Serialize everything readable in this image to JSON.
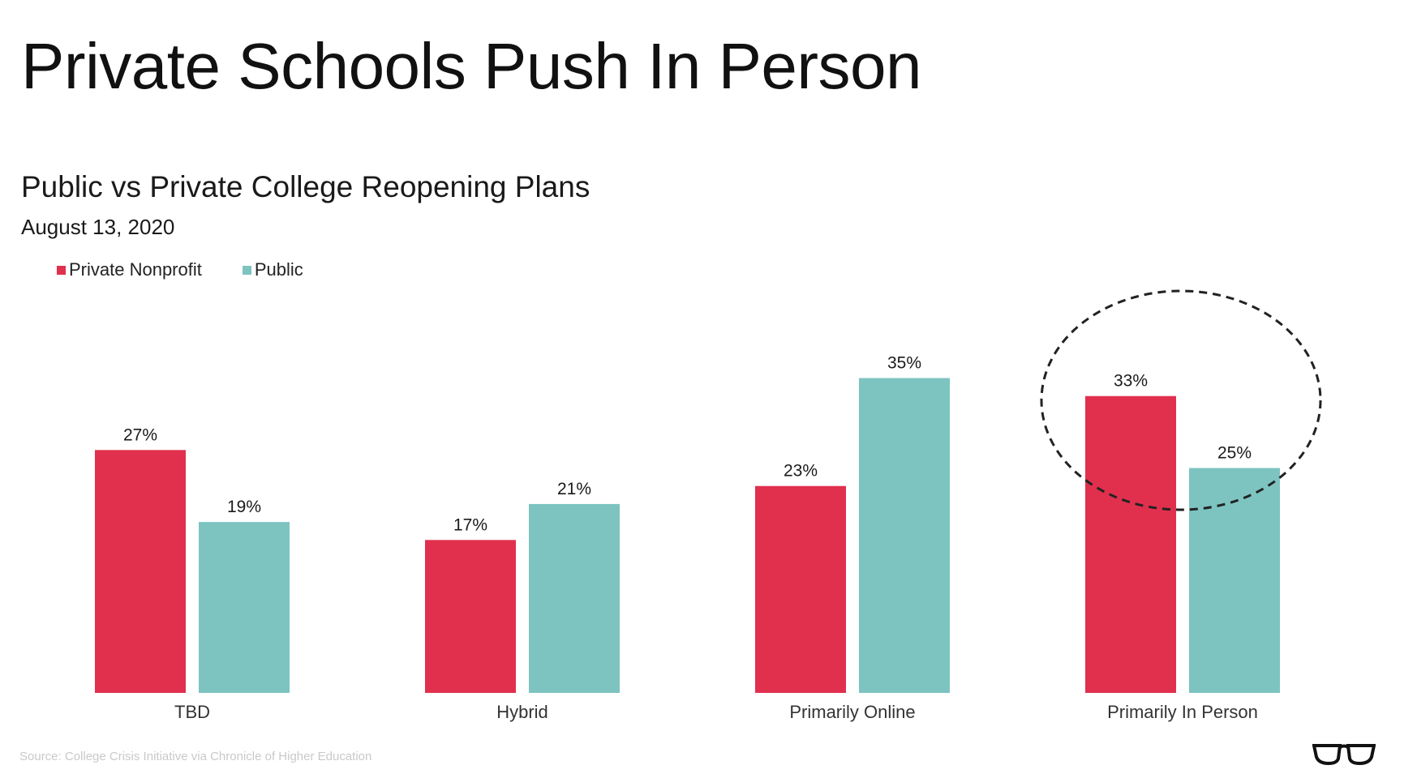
{
  "slide": {
    "title": "Private Schools Push In Person",
    "source": "Source: College Crisis Initiative via Chronicle of Higher Education"
  },
  "chart_data": {
    "type": "bar",
    "title": "Public vs Private College Reopening Plans",
    "subtitle": "August 13, 2020",
    "categories": [
      "TBD",
      "Hybrid",
      "Primarily Online",
      "Primarily In Person"
    ],
    "series": [
      {
        "name": "Private Nonprofit",
        "color": "#E0304E",
        "values": [
          27,
          17,
          23,
          33
        ]
      },
      {
        "name": "Public",
        "color": "#7DC4C1",
        "values": [
          19,
          21,
          35,
          25
        ]
      }
    ],
    "value_suffix": "%",
    "legend_position": "top-left",
    "grid": false,
    "annotation": "dashed circle highlighting Primarily In Person"
  },
  "icons": {
    "logo": "glasses-icon"
  }
}
